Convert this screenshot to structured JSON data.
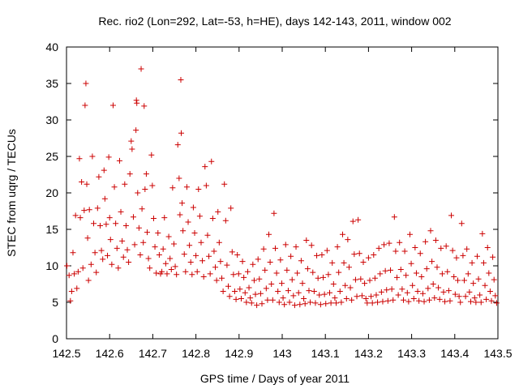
{
  "chart_data": {
    "type": "scatter",
    "title": "Rec. rio2 (Lon=292, Lat=-53, h=HE), days 142-143, 2011, window 002",
    "xlabel": "GPS time / Days of year 2011",
    "ylabel": "STEC from uqrg / TECUs",
    "xlim": [
      142.5,
      143.5
    ],
    "ylim": [
      0,
      40
    ],
    "x_ticks": [
      142.5,
      142.6,
      142.7,
      142.8,
      142.9,
      143.0,
      143.1,
      143.2,
      143.3,
      143.4,
      143.5
    ],
    "x_tick_labels": [
      "142.5",
      "142.6",
      "142.7",
      "142.8",
      "142.9",
      "143",
      "143.1",
      "143.2",
      "143.3",
      "143.4",
      "143.5"
    ],
    "y_ticks": [
      0,
      5,
      10,
      15,
      20,
      25,
      30,
      35,
      40
    ],
    "y_tick_labels": [
      "0",
      "5",
      "10",
      "15",
      "20",
      "25",
      "30",
      "35",
      "40"
    ],
    "grid": false,
    "legend": "none",
    "marker": "+",
    "color": "#cc0000",
    "points": [
      [
        142.501,
        10.0
      ],
      [
        142.506,
        8.7
      ],
      [
        142.509,
        5.2
      ],
      [
        142.512,
        6.5
      ],
      [
        142.515,
        11.8
      ],
      [
        142.518,
        8.9
      ],
      [
        142.521,
        16.9
      ],
      [
        142.524,
        6.9
      ],
      [
        142.527,
        9.2
      ],
      [
        142.53,
        24.7
      ],
      [
        142.532,
        16.6
      ],
      [
        142.535,
        21.5
      ],
      [
        142.538,
        9.7
      ],
      [
        142.541,
        17.6
      ],
      [
        142.543,
        32.0
      ],
      [
        142.545,
        35.0
      ],
      [
        142.547,
        21.2
      ],
      [
        142.549,
        13.8
      ],
      [
        142.551,
        8.0
      ],
      [
        142.553,
        17.7
      ],
      [
        142.557,
        10.2
      ],
      [
        142.56,
        25.0
      ],
      [
        142.563,
        15.8
      ],
      [
        142.566,
        11.8
      ],
      [
        142.569,
        9.1
      ],
      [
        142.572,
        17.9
      ],
      [
        142.575,
        22.2
      ],
      [
        142.578,
        15.5
      ],
      [
        142.581,
        12.1
      ],
      [
        142.584,
        10.9
      ],
      [
        142.587,
        23.1
      ],
      [
        142.589,
        19.2
      ],
      [
        142.592,
        15.7
      ],
      [
        142.595,
        11.4
      ],
      [
        142.598,
        24.9
      ],
      [
        142.6,
        16.6
      ],
      [
        142.602,
        13.6
      ],
      [
        142.605,
        10.2
      ],
      [
        142.608,
        32.0
      ],
      [
        142.611,
        20.8
      ],
      [
        142.614,
        15.8
      ],
      [
        142.617,
        12.4
      ],
      [
        142.62,
        9.7
      ],
      [
        142.623,
        24.4
      ],
      [
        142.626,
        17.4
      ],
      [
        142.629,
        13.4
      ],
      [
        142.632,
        11.2
      ],
      [
        142.635,
        21.2
      ],
      [
        142.638,
        15.5
      ],
      [
        142.641,
        12.2
      ],
      [
        142.644,
        10.5
      ],
      [
        142.647,
        22.6
      ],
      [
        142.65,
        27.1
      ],
      [
        142.652,
        26.0
      ],
      [
        142.655,
        16.7
      ],
      [
        142.658,
        12.9
      ],
      [
        142.661,
        28.6
      ],
      [
        142.662,
        32.7
      ],
      [
        142.663,
        32.3
      ],
      [
        142.665,
        20.0
      ],
      [
        142.668,
        15.2
      ],
      [
        142.671,
        11.5
      ],
      [
        142.673,
        37.0
      ],
      [
        142.675,
        17.8
      ],
      [
        142.678,
        13.2
      ],
      [
        142.68,
        31.9
      ],
      [
        142.682,
        20.5
      ],
      [
        142.685,
        22.6
      ],
      [
        142.687,
        14.6
      ],
      [
        142.69,
        11.0
      ],
      [
        142.693,
        9.7
      ],
      [
        142.697,
        25.2
      ],
      [
        142.699,
        21.0
      ],
      [
        142.702,
        16.5
      ],
      [
        142.705,
        12.6
      ],
      [
        142.708,
        9.0
      ],
      [
        142.712,
        14.5
      ],
      [
        142.715,
        11.5
      ],
      [
        142.718,
        8.9
      ],
      [
        142.721,
        9.2
      ],
      [
        142.724,
        12.3
      ],
      [
        142.727,
        16.6
      ],
      [
        142.73,
        10.3
      ],
      [
        142.733,
        8.9
      ],
      [
        142.737,
        14.0
      ],
      [
        142.74,
        11.0
      ],
      [
        142.743,
        9.5
      ],
      [
        142.746,
        20.7
      ],
      [
        142.749,
        13.0
      ],
      [
        142.752,
        9.9
      ],
      [
        142.755,
        8.8
      ],
      [
        142.758,
        26.6
      ],
      [
        142.761,
        22.0
      ],
      [
        142.763,
        17.0
      ],
      [
        142.765,
        35.5
      ],
      [
        142.766,
        28.2
      ],
      [
        142.768,
        18.6
      ],
      [
        142.77,
        14.8
      ],
      [
        142.773,
        11.6
      ],
      [
        142.776,
        9.2
      ],
      [
        142.779,
        20.8
      ],
      [
        142.782,
        16.0
      ],
      [
        142.785,
        12.8
      ],
      [
        142.788,
        10.5
      ],
      [
        142.791,
        8.8
      ],
      [
        142.794,
        18.0
      ],
      [
        142.797,
        14.5
      ],
      [
        142.8,
        11.4
      ],
      [
        142.803,
        9.2
      ],
      [
        142.806,
        20.5
      ],
      [
        142.809,
        16.8
      ],
      [
        142.812,
        13.2
      ],
      [
        142.815,
        10.7
      ],
      [
        142.818,
        8.5
      ],
      [
        142.821,
        23.6
      ],
      [
        142.824,
        21.0
      ],
      [
        142.827,
        14.2
      ],
      [
        142.83,
        11.3
      ],
      [
        142.833,
        8.9
      ],
      [
        142.836,
        24.3
      ],
      [
        142.839,
        16.5
      ],
      [
        142.842,
        12.0
      ],
      [
        142.845,
        9.8
      ],
      [
        142.848,
        8.0
      ],
      [
        142.851,
        17.4
      ],
      [
        142.854,
        13.2
      ],
      [
        142.857,
        10.6
      ],
      [
        142.86,
        8.3
      ],
      [
        142.863,
        6.5
      ],
      [
        142.866,
        21.2
      ],
      [
        142.869,
        16.2
      ],
      [
        142.872,
        10.1
      ],
      [
        142.875,
        7.2
      ],
      [
        142.878,
        5.8
      ],
      [
        142.881,
        17.9
      ],
      [
        142.884,
        11.9
      ],
      [
        142.887,
        8.8
      ],
      [
        142.89,
        6.5
      ],
      [
        142.893,
        5.4
      ],
      [
        142.896,
        11.5
      ],
      [
        142.899,
        8.9
      ],
      [
        142.902,
        6.8
      ],
      [
        142.905,
        5.5
      ],
      [
        142.908,
        10.6
      ],
      [
        142.911,
        8.4
      ],
      [
        142.914,
        6.3
      ],
      [
        142.917,
        5.0
      ],
      [
        142.92,
        9.2
      ],
      [
        142.923,
        7.0
      ],
      [
        142.926,
        5.6
      ],
      [
        142.929,
        4.9
      ],
      [
        142.932,
        10.2
      ],
      [
        142.935,
        8.0
      ],
      [
        142.938,
        6.1
      ],
      [
        142.941,
        4.6
      ],
      [
        142.944,
        10.9
      ],
      [
        142.947,
        8.2
      ],
      [
        142.95,
        6.2
      ],
      [
        142.953,
        4.8
      ],
      [
        142.957,
        12.3
      ],
      [
        142.96,
        9.4
      ],
      [
        142.963,
        6.9
      ],
      [
        142.966,
        5.3
      ],
      [
        142.969,
        14.3
      ],
      [
        142.972,
        10.5
      ],
      [
        142.975,
        7.5
      ],
      [
        142.978,
        5.3
      ],
      [
        142.981,
        17.2
      ],
      [
        142.984,
        12.4
      ],
      [
        142.987,
        9.0
      ],
      [
        142.99,
        6.5
      ],
      [
        142.993,
        5.0
      ],
      [
        142.996,
        10.8
      ],
      [
        142.999,
        7.6
      ],
      [
        143.002,
        5.6
      ],
      [
        143.005,
        4.7
      ],
      [
        143.008,
        12.9
      ],
      [
        143.011,
        9.4
      ],
      [
        143.014,
        6.6
      ],
      [
        143.017,
        5.0
      ],
      [
        143.02,
        11.3
      ],
      [
        143.023,
        8.1
      ],
      [
        143.026,
        5.9
      ],
      [
        143.029,
        4.6
      ],
      [
        143.032,
        12.6
      ],
      [
        143.035,
        9.0
      ],
      [
        143.038,
        6.3
      ],
      [
        143.041,
        4.7
      ],
      [
        143.044,
        10.7
      ],
      [
        143.047,
        7.6
      ],
      [
        143.05,
        5.5
      ],
      [
        143.053,
        4.8
      ],
      [
        143.056,
        13.5
      ],
      [
        143.059,
        9.6
      ],
      [
        143.062,
        6.6
      ],
      [
        143.065,
        5.0
      ],
      [
        143.068,
        12.8
      ],
      [
        143.071,
        9.1
      ],
      [
        143.074,
        6.5
      ],
      [
        143.077,
        4.9
      ],
      [
        143.08,
        11.4
      ],
      [
        143.083,
        8.3
      ],
      [
        143.086,
        6.0
      ],
      [
        143.089,
        4.7
      ],
      [
        143.092,
        11.5
      ],
      [
        143.095,
        8.4
      ],
      [
        143.098,
        6.1
      ],
      [
        143.101,
        4.8
      ],
      [
        143.104,
        12.1
      ],
      [
        143.107,
        8.8
      ],
      [
        143.11,
        6.3
      ],
      [
        143.113,
        4.9
      ],
      [
        143.116,
        10.4
      ],
      [
        143.119,
        7.5
      ],
      [
        143.122,
        5.6
      ],
      [
        143.125,
        4.9
      ],
      [
        143.128,
        12.6
      ],
      [
        143.131,
        9.1
      ],
      [
        143.134,
        6.5
      ],
      [
        143.137,
        5.0
      ],
      [
        143.14,
        14.3
      ],
      [
        143.143,
        10.4
      ],
      [
        143.146,
        7.3
      ],
      [
        143.149,
        5.5
      ],
      [
        143.152,
        13.6
      ],
      [
        143.155,
        9.8
      ],
      [
        143.158,
        7.0
      ],
      [
        143.161,
        5.3
      ],
      [
        143.164,
        16.1
      ],
      [
        143.167,
        11.6
      ],
      [
        143.17,
        8.1
      ],
      [
        143.173,
        5.8
      ],
      [
        143.176,
        16.3
      ],
      [
        143.179,
        11.7
      ],
      [
        143.182,
        8.2
      ],
      [
        143.185,
        5.9
      ],
      [
        143.188,
        10.5
      ],
      [
        143.191,
        7.6
      ],
      [
        143.194,
        5.5
      ],
      [
        143.197,
        4.9
      ],
      [
        143.2,
        11.1
      ],
      [
        143.203,
        8.0
      ],
      [
        143.206,
        5.8
      ],
      [
        143.209,
        4.9
      ],
      [
        143.212,
        11.5
      ],
      [
        143.215,
        8.3
      ],
      [
        143.218,
        6.0
      ],
      [
        143.221,
        5.0
      ],
      [
        143.224,
        12.4
      ],
      [
        143.227,
        8.9
      ],
      [
        143.23,
        6.4
      ],
      [
        143.233,
        5.1
      ],
      [
        143.236,
        12.9
      ],
      [
        143.239,
        9.3
      ],
      [
        143.242,
        6.7
      ],
      [
        143.245,
        5.2
      ],
      [
        143.248,
        13.1
      ],
      [
        143.251,
        9.4
      ],
      [
        143.254,
        6.8
      ],
      [
        143.257,
        5.3
      ],
      [
        143.26,
        16.7
      ],
      [
        143.263,
        12.0
      ],
      [
        143.266,
        8.4
      ],
      [
        143.269,
        6.0
      ],
      [
        143.272,
        13.2
      ],
      [
        143.275,
        9.5
      ],
      [
        143.278,
        6.8
      ],
      [
        143.281,
        5.3
      ],
      [
        143.284,
        12.0
      ],
      [
        143.287,
        8.7
      ],
      [
        143.29,
        6.3
      ],
      [
        143.293,
        5.1
      ],
      [
        143.296,
        14.3
      ],
      [
        143.299,
        10.3
      ],
      [
        143.302,
        7.3
      ],
      [
        143.305,
        5.5
      ],
      [
        143.308,
        12.5
      ],
      [
        143.311,
        9.0
      ],
      [
        143.314,
        6.5
      ],
      [
        143.317,
        5.2
      ],
      [
        143.32,
        11.7
      ],
      [
        143.323,
        8.5
      ],
      [
        143.326,
        6.2
      ],
      [
        143.329,
        5.1
      ],
      [
        143.332,
        13.3
      ],
      [
        143.335,
        9.6
      ],
      [
        143.338,
        6.9
      ],
      [
        143.341,
        5.3
      ],
      [
        143.344,
        14.8
      ],
      [
        143.347,
        10.6
      ],
      [
        143.35,
        7.5
      ],
      [
        143.353,
        5.6
      ],
      [
        143.356,
        13.5
      ],
      [
        143.359,
        9.8
      ],
      [
        143.362,
        7.0
      ],
      [
        143.365,
        5.4
      ],
      [
        143.368,
        12.4
      ],
      [
        143.371,
        8.9
      ],
      [
        143.374,
        6.4
      ],
      [
        143.377,
        5.1
      ],
      [
        143.38,
        12.7
      ],
      [
        143.383,
        9.2
      ],
      [
        143.386,
        6.6
      ],
      [
        143.389,
        5.2
      ],
      [
        143.392,
        16.9
      ],
      [
        143.395,
        12.1
      ],
      [
        143.398,
        8.5
      ],
      [
        143.401,
        6.1
      ],
      [
        143.404,
        11.1
      ],
      [
        143.407,
        8.0
      ],
      [
        143.41,
        5.8
      ],
      [
        143.413,
        5.0
      ],
      [
        143.416,
        15.8
      ],
      [
        143.419,
        11.4
      ],
      [
        143.422,
        8.0
      ],
      [
        143.425,
        5.8
      ],
      [
        143.428,
        12.3
      ],
      [
        143.431,
        8.9
      ],
      [
        143.434,
        6.4
      ],
      [
        143.437,
        5.1
      ],
      [
        143.44,
        10.4
      ],
      [
        143.443,
        7.6
      ],
      [
        143.446,
        5.6
      ],
      [
        143.449,
        5.0
      ],
      [
        143.452,
        11.3
      ],
      [
        143.455,
        8.2
      ],
      [
        143.458,
        6.0
      ],
      [
        143.461,
        5.0
      ],
      [
        143.464,
        14.4
      ],
      [
        143.467,
        10.4
      ],
      [
        143.47,
        7.3
      ],
      [
        143.473,
        5.4
      ],
      [
        143.476,
        12.5
      ],
      [
        143.479,
        9.0
      ],
      [
        143.482,
        6.5
      ],
      [
        143.485,
        5.2
      ],
      [
        143.488,
        11.2
      ],
      [
        143.491,
        8.1
      ],
      [
        143.494,
        5.9
      ],
      [
        143.497,
        4.9
      ]
    ]
  }
}
